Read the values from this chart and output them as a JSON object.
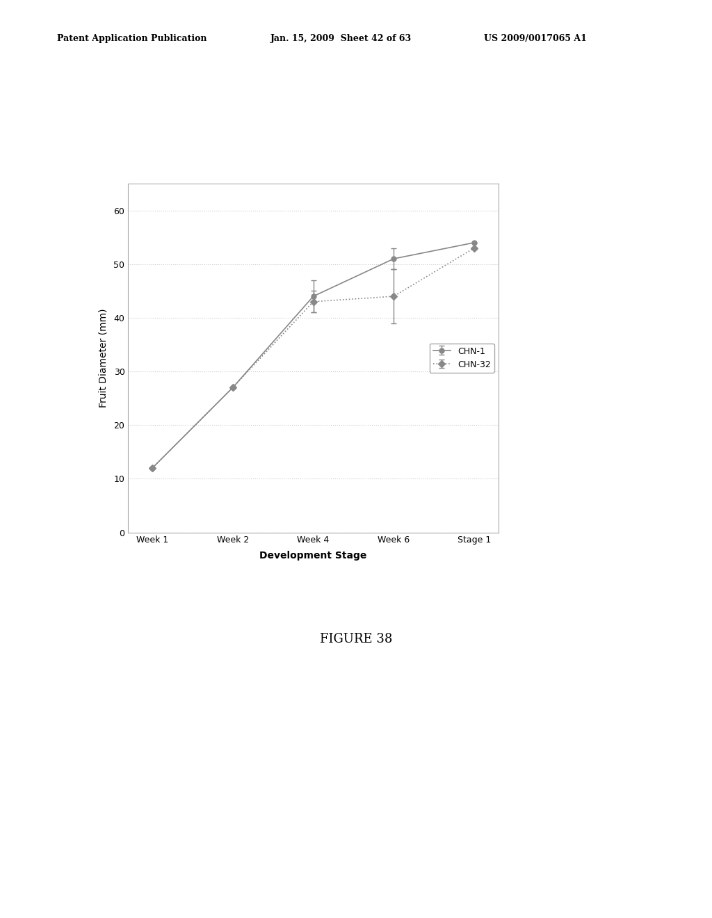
{
  "categories": [
    "Week 1",
    "Week 2",
    "Week 4",
    "Week 6",
    "Stage 1"
  ],
  "chn1_values": [
    12,
    27,
    44,
    51,
    54
  ],
  "chn1_yerr": [
    0,
    0,
    3,
    2,
    0
  ],
  "chn32_values": [
    12,
    27,
    43,
    44,
    53
  ],
  "chn32_yerr": [
    0,
    0,
    2,
    5,
    0
  ],
  "ylabel": "Fruit Diameter (mm)",
  "xlabel": "Development Stage",
  "ylim": [
    0,
    65
  ],
  "yticks": [
    0,
    10,
    20,
    30,
    40,
    50,
    60
  ],
  "legend_labels": [
    "CHN-1",
    "CHN-32"
  ],
  "figure_caption": "FIGURE 38",
  "header_left": "Patent Application Publication",
  "header_mid": "Jan. 15, 2009  Sheet 42 of 63",
  "header_right": "US 2009/0017065 A1",
  "line_color": "#888888",
  "bg_color": "#ffffff",
  "grid_color": "#cccccc"
}
